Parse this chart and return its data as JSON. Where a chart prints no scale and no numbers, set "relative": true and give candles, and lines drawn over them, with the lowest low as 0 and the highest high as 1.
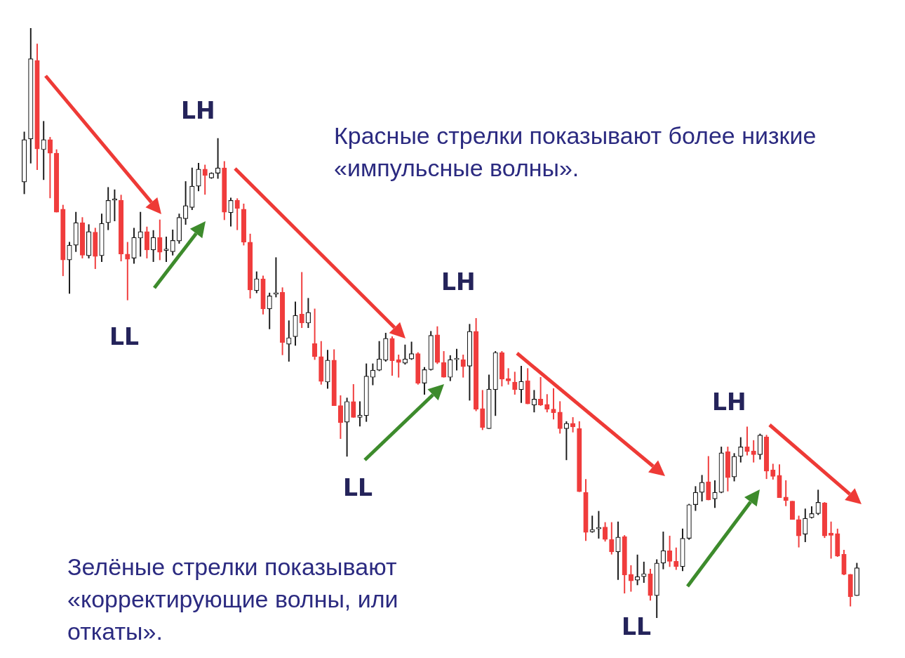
{
  "chart_data": {
    "type": "candlestick",
    "relative": true,
    "categories": [
      null,
      null,
      null,
      null,
      null,
      null,
      null,
      null,
      null,
      null,
      null,
      null,
      null,
      null,
      null,
      null,
      null,
      null,
      null,
      null,
      null,
      null,
      null,
      null,
      null,
      null,
      null,
      null,
      null,
      null,
      null,
      null,
      null,
      null,
      null,
      null,
      null,
      null,
      null,
      null,
      null,
      null,
      null,
      null,
      null,
      null,
      null,
      null,
      null,
      null,
      null,
      null,
      null,
      null,
      null,
      null,
      null,
      null,
      null,
      null,
      null,
      null,
      null,
      null,
      null,
      null,
      null,
      null,
      null,
      null,
      null,
      null,
      null,
      null,
      null,
      null,
      null,
      null,
      null,
      null,
      null,
      null,
      null,
      null,
      null,
      null,
      null,
      null,
      null,
      null,
      null,
      null,
      null,
      null,
      null,
      null,
      null,
      null,
      null,
      null,
      null,
      null,
      null,
      null,
      null,
      null,
      null,
      null,
      null,
      null,
      null,
      null,
      null,
      null,
      null,
      null,
      null,
      null,
      null,
      null,
      null,
      null,
      null,
      null,
      null,
      null,
      null,
      null,
      null,
      null
    ],
    "ohlc": [
      [
        0.739,
        0.824,
        0.719,
        0.811
      ],
      [
        0.812,
        1,
        0.771,
        0.948
      ],
      [
        0.945,
        0.973,
        0.76,
        0.795
      ],
      [
        0.794,
        0.842,
        0.743,
        0.811
      ],
      [
        0.811,
        0.815,
        0.712,
        0.788
      ],
      [
        0.788,
        0.794,
        0.688,
        0.688
      ],
      [
        0.693,
        0.7,
        0.58,
        0.607
      ],
      [
        0.607,
        0.637,
        0.55,
        0.632
      ],
      [
        0.632,
        0.688,
        0.621,
        0.67
      ],
      [
        0.67,
        0.679,
        0.61,
        0.615
      ],
      [
        0.614,
        0.667,
        0.61,
        0.655
      ],
      [
        0.654,
        0.661,
        0.592,
        0.613
      ],
      [
        0.614,
        0.685,
        0.604,
        0.669
      ],
      [
        0.67,
        0.73,
        0.658,
        0.708
      ],
      [
        0.708,
        0.726,
        0.673,
        0.708
      ],
      [
        0.708,
        0.717,
        0.605,
        0.617
      ],
      [
        0.617,
        0.637,
        0.539,
        0.608
      ],
      [
        0.61,
        0.661,
        0.601,
        0.645
      ],
      [
        0.644,
        0.688,
        0.613,
        0.655
      ],
      [
        0.655,
        0.663,
        0.61,
        0.624
      ],
      [
        0.624,
        0.657,
        0.604,
        0.645
      ],
      [
        0.645,
        0.675,
        0.607,
        0.62
      ],
      [
        0.623,
        0.646,
        0.604,
        0.623
      ],
      [
        0.621,
        0.658,
        0.615,
        0.64
      ],
      [
        0.639,
        0.685,
        0.635,
        0.679
      ],
      [
        0.677,
        0.74,
        0.667,
        0.699
      ],
      [
        0.696,
        0.763,
        0.692,
        0.732
      ],
      [
        0.732,
        0.771,
        0.724,
        0.761
      ],
      [
        0.761,
        0.768,
        0.718,
        0.75
      ],
      [
        0.746,
        0.755,
        0.745,
        0.754
      ],
      [
        0.754,
        0.813,
        0.745,
        0.763
      ],
      [
        0.763,
        0.774,
        0.675,
        0.688
      ],
      [
        0.687,
        0.712,
        0.664,
        0.708
      ],
      [
        0.708,
        0.711,
        0.658,
        0.694
      ],
      [
        0.693,
        0.702,
        0.632,
        0.637
      ],
      [
        0.637,
        0.651,
        0.542,
        0.556
      ],
      [
        0.555,
        0.587,
        0.551,
        0.575
      ],
      [
        0.575,
        0.58,
        0.515,
        0.524
      ],
      [
        0.524,
        0.551,
        0.49,
        0.546
      ],
      [
        0.549,
        0.611,
        0.544,
        0.549
      ],
      [
        0.552,
        0.56,
        0.446,
        0.467
      ],
      [
        0.464,
        0.504,
        0.435,
        0.475
      ],
      [
        0.477,
        0.536,
        0.462,
        0.513
      ],
      [
        0.515,
        0.586,
        0.492,
        0.5
      ],
      [
        0.5,
        0.542,
        0.492,
        0.518
      ],
      [
        0.465,
        0.524,
        0.438,
        0.443
      ],
      [
        0.443,
        0.469,
        0.396,
        0.401
      ],
      [
        0.4,
        0.454,
        0.389,
        0.437
      ],
      [
        0.437,
        0.455,
        0.36,
        0.36
      ],
      [
        0.36,
        0.377,
        0.304,
        0.331
      ],
      [
        0.332,
        0.373,
        0.274,
        0.367
      ],
      [
        0.367,
        0.396,
        0.34,
        0.34
      ],
      [
        0.34,
        0.367,
        0.325,
        0.344
      ],
      [
        0.343,
        0.431,
        0.333,
        0.41
      ],
      [
        0.408,
        0.431,
        0.395,
        0.42
      ],
      [
        0.42,
        0.469,
        0.419,
        0.439
      ],
      [
        0.437,
        0.483,
        0.435,
        0.474
      ],
      [
        0.474,
        0.477,
        0.411,
        0.436
      ],
      [
        0.438,
        0.446,
        0.408,
        0.433
      ],
      [
        0.432,
        0.463,
        0.43,
        0.439
      ],
      [
        0.439,
        0.468,
        0.438,
        0.448
      ],
      [
        0.448,
        0.45,
        0.396,
        0.398
      ],
      [
        0.398,
        0.425,
        0.379,
        0.421
      ],
      [
        0.421,
        0.486,
        0.42,
        0.479
      ],
      [
        0.48,
        0.494,
        0.431,
        0.433
      ],
      [
        0.433,
        0.452,
        0.408,
        0.408
      ],
      [
        0.408,
        0.445,
        0.402,
        0.438
      ],
      [
        0.438,
        0.456,
        0.42,
        0.438
      ],
      [
        0.438,
        0.446,
        0.408,
        0.426
      ],
      [
        0.427,
        0.498,
        0.369,
        0.486
      ],
      [
        0.486,
        0.508,
        0.351,
        0.354
      ],
      [
        0.355,
        0.386,
        0.319,
        0.323
      ],
      [
        0.321,
        0.412,
        0.321,
        0.388
      ],
      [
        0.387,
        0.452,
        0.343,
        0.45
      ],
      [
        0.45,
        0.452,
        0.393,
        0.405
      ],
      [
        0.406,
        0.423,
        0.396,
        0.402
      ],
      [
        0.4,
        0.417,
        0.379,
        0.387
      ],
      [
        0.387,
        0.427,
        0.365,
        0.401
      ],
      [
        0.402,
        0.423,
        0.363,
        0.363
      ],
      [
        0.361,
        0.386,
        0.349,
        0.371
      ],
      [
        0.371,
        0.408,
        0.36,
        0.361
      ],
      [
        0.362,
        0.379,
        0.349,
        0.354
      ],
      [
        0.354,
        0.389,
        0.337,
        0.348
      ],
      [
        0.349,
        0.367,
        0.313,
        0.321
      ],
      [
        0.321,
        0.333,
        0.268,
        0.33
      ],
      [
        0.33,
        0.34,
        0.315,
        0.324
      ],
      [
        0.321,
        0.333,
        0.214,
        0.214
      ],
      [
        0.213,
        0.235,
        0.131,
        0.145
      ],
      [
        0.146,
        0.173,
        0.145,
        0.15
      ],
      [
        0.151,
        0.181,
        0.135,
        0.152
      ],
      [
        0.154,
        0.162,
        0.13,
        0.133
      ],
      [
        0.133,
        0.162,
        0.108,
        0.112
      ],
      [
        0.112,
        0.163,
        0.065,
        0.137
      ],
      [
        0.138,
        0.14,
        0.042,
        0.073
      ],
      [
        0.074,
        0.089,
        0.045,
        0.063
      ],
      [
        0.064,
        0.107,
        0.056,
        0.07
      ],
      [
        0.07,
        0.095,
        0.06,
        0.075
      ],
      [
        0.075,
        0.083,
        0.03,
        0.038
      ],
      [
        0.038,
        0.099,
        0,
        0.093
      ],
      [
        0.093,
        0.146,
        0.083,
        0.114
      ],
      [
        0.114,
        0.139,
        0.087,
        0.096
      ],
      [
        0.096,
        0.119,
        0.082,
        0.087
      ],
      [
        0.087,
        0.151,
        0.08,
        0.135
      ],
      [
        0.135,
        0.193,
        0.133,
        0.192
      ],
      [
        0.192,
        0.223,
        0.182,
        0.213
      ],
      [
        0.213,
        0.242,
        0.198,
        0.23
      ],
      [
        0.231,
        0.274,
        0.2,
        0.2
      ],
      [
        0.202,
        0.233,
        0.187,
        0.213
      ],
      [
        0.213,
        0.29,
        0.212,
        0.28
      ],
      [
        0.282,
        0.29,
        0.215,
        0.238
      ],
      [
        0.239,
        0.279,
        0.232,
        0.274
      ],
      [
        0.274,
        0.306,
        0.264,
        0.29
      ],
      [
        0.29,
        0.324,
        0.276,
        0.282
      ],
      [
        0.283,
        0.301,
        0.264,
        0.277
      ],
      [
        0.277,
        0.312,
        0.269,
        0.31
      ],
      [
        0.307,
        0.31,
        0.236,
        0.249
      ],
      [
        0.251,
        0.261,
        0.235,
        0.24
      ],
      [
        0.242,
        0.26,
        0.204,
        0.204
      ],
      [
        0.205,
        0.233,
        0.19,
        0.199
      ],
      [
        0.198,
        0.198,
        0.167,
        0.167
      ],
      [
        0.167,
        0.173,
        0.12,
        0.139
      ],
      [
        0.142,
        0.185,
        0.129,
        0.169
      ],
      [
        0.17,
        0.189,
        0.169,
        0.177
      ],
      [
        0.177,
        0.217,
        0.175,
        0.196
      ],
      [
        0.195,
        0.196,
        0.136,
        0.139
      ],
      [
        0.144,
        0.163,
        0.101,
        0.14
      ],
      [
        0.143,
        0.151,
        0.104,
        0.105
      ],
      [
        0.108,
        0.115,
        0.073,
        0.074
      ],
      [
        0.074,
        0.074,
        0.02,
        0.036
      ],
      [
        0.038,
        0.093,
        0.038,
        0.085
      ]
    ],
    "annotations": [
      "LH",
      "LH",
      "LH",
      "LL",
      "LL",
      "LL",
      "Красные стрелки показывают более низкие «импульсные волны».",
      "Зелёные стрелки показывают «корректирующие волны, или откаты»."
    ]
  }
}
